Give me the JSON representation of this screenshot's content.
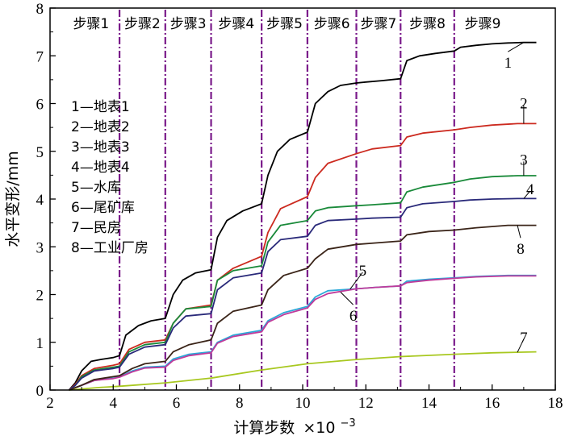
{
  "chart_data": {
    "type": "line",
    "xlabel": "计算步数",
    "xlabel_scale": "×10",
    "xlabel_exponent": "−3",
    "ylabel": "水平变形/mm",
    "xlim": [
      2,
      18
    ],
    "ylim": [
      0,
      8
    ],
    "x_ticks": [
      "2",
      "4",
      "6",
      "8",
      "10",
      "12",
      "14",
      "16",
      "18"
    ],
    "y_ticks": [
      "0",
      "1",
      "2",
      "3",
      "4",
      "5",
      "6",
      "7",
      "8"
    ],
    "grid": false,
    "step_boundaries": [
      4.2,
      5.65,
      7.1,
      8.7,
      10.15,
      11.7,
      13.1,
      14.8
    ],
    "step_labels": [
      "步骤1",
      "步骤2",
      "步骤3",
      "步骤4",
      "步骤5",
      "步骤6",
      "步骤7",
      "步骤8",
      "步骤9"
    ],
    "legend": [
      "1—地表1",
      "2—地表2",
      "3—地表3",
      "4—地表4",
      "5—水库",
      "6—尾矿库",
      "7—民房",
      "8—工业厂房"
    ],
    "legend_position": "left",
    "series": [
      {
        "name": "1",
        "color": "#000000",
        "x": [
          2.6,
          2.8,
          3.0,
          3.3,
          3.6,
          4.0,
          4.2,
          4.4,
          4.8,
          5.2,
          5.65,
          5.9,
          6.2,
          6.6,
          7.1,
          7.3,
          7.6,
          8.1,
          8.7,
          8.9,
          9.2,
          9.6,
          10.15,
          10.4,
          10.8,
          11.2,
          11.7,
          12.0,
          12.5,
          13.1,
          13.3,
          13.7,
          14.2,
          14.8,
          15.0,
          15.5,
          16.0,
          16.5,
          17.0,
          17.4
        ],
        "y": [
          0,
          0.15,
          0.4,
          0.6,
          0.64,
          0.68,
          0.72,
          1.15,
          1.35,
          1.45,
          1.5,
          2.0,
          2.3,
          2.45,
          2.52,
          3.2,
          3.55,
          3.75,
          3.9,
          4.5,
          5.0,
          5.25,
          5.4,
          6.0,
          6.25,
          6.38,
          6.43,
          6.45,
          6.48,
          6.52,
          6.9,
          7.0,
          7.05,
          7.1,
          7.18,
          7.22,
          7.25,
          7.27,
          7.28,
          7.28
        ]
      },
      {
        "name": "2",
        "color": "#cc2a1f",
        "x": [
          2.6,
          2.8,
          3.0,
          3.4,
          4.0,
          4.2,
          4.5,
          5.0,
          5.65,
          5.9,
          6.3,
          7.1,
          7.3,
          7.8,
          8.7,
          8.9,
          9.3,
          10.15,
          10.4,
          10.8,
          11.7,
          12.2,
          13.1,
          13.3,
          13.8,
          14.8,
          15.3,
          16.0,
          16.8,
          17.4
        ],
        "y": [
          0,
          0.12,
          0.3,
          0.45,
          0.52,
          0.55,
          0.85,
          1.0,
          1.05,
          1.4,
          1.7,
          1.78,
          2.3,
          2.55,
          2.8,
          3.3,
          3.8,
          4.05,
          4.45,
          4.75,
          4.95,
          5.05,
          5.12,
          5.3,
          5.38,
          5.45,
          5.5,
          5.55,
          5.58,
          5.58
        ]
      },
      {
        "name": "3",
        "color": "#1a8a3a",
        "x": [
          2.6,
          2.8,
          3.0,
          3.4,
          4.0,
          4.2,
          4.5,
          5.0,
          5.65,
          5.9,
          6.3,
          7.1,
          7.3,
          7.8,
          8.7,
          8.9,
          9.3,
          10.15,
          10.4,
          10.8,
          11.7,
          12.2,
          13.1,
          13.3,
          13.8,
          14.8,
          15.3,
          16.0,
          16.8,
          17.4
        ],
        "y": [
          0,
          0.1,
          0.28,
          0.42,
          0.48,
          0.5,
          0.8,
          0.95,
          1.0,
          1.4,
          1.7,
          1.75,
          2.3,
          2.5,
          2.6,
          3.1,
          3.45,
          3.55,
          3.75,
          3.82,
          3.86,
          3.88,
          3.92,
          4.15,
          4.25,
          4.35,
          4.42,
          4.47,
          4.49,
          4.49
        ]
      },
      {
        "name": "4",
        "color": "#2a2a7a",
        "x": [
          2.6,
          2.8,
          3.0,
          3.4,
          4.0,
          4.2,
          4.5,
          5.0,
          5.65,
          5.9,
          6.3,
          7.1,
          7.3,
          7.8,
          8.7,
          8.9,
          9.3,
          10.15,
          10.4,
          10.8,
          11.7,
          12.2,
          13.1,
          13.3,
          13.8,
          14.8,
          15.3,
          16.0,
          16.8,
          17.4
        ],
        "y": [
          0,
          0.1,
          0.25,
          0.4,
          0.45,
          0.48,
          0.75,
          0.9,
          0.95,
          1.3,
          1.55,
          1.6,
          2.1,
          2.35,
          2.45,
          2.9,
          3.15,
          3.22,
          3.45,
          3.55,
          3.58,
          3.6,
          3.62,
          3.82,
          3.9,
          3.95,
          3.98,
          4.0,
          4.01,
          4.01
        ]
      },
      {
        "name": "5",
        "color": "#2aa8d8",
        "x": [
          2.6,
          3.0,
          3.4,
          4.0,
          4.2,
          4.6,
          5.0,
          5.65,
          5.9,
          6.4,
          7.1,
          7.3,
          7.8,
          8.7,
          8.9,
          9.4,
          10.15,
          10.4,
          10.8,
          11.7,
          12.3,
          13.1,
          13.3,
          14.0,
          14.8,
          15.5,
          16.5,
          17.4
        ],
        "y": [
          0,
          0.1,
          0.2,
          0.25,
          0.28,
          0.4,
          0.48,
          0.5,
          0.65,
          0.75,
          0.8,
          1.0,
          1.15,
          1.25,
          1.45,
          1.62,
          1.75,
          1.95,
          2.08,
          2.12,
          2.15,
          2.18,
          2.28,
          2.32,
          2.35,
          2.38,
          2.4,
          2.4
        ]
      },
      {
        "name": "6",
        "color": "#c03a9a",
        "x": [
          2.6,
          3.0,
          3.4,
          4.0,
          4.2,
          4.6,
          5.0,
          5.65,
          5.9,
          6.4,
          7.1,
          7.3,
          7.8,
          8.7,
          8.9,
          9.4,
          10.15,
          10.4,
          10.8,
          11.7,
          12.3,
          13.1,
          13.3,
          14.0,
          14.8,
          15.5,
          16.5,
          17.4
        ],
        "y": [
          0,
          0.1,
          0.2,
          0.24,
          0.27,
          0.38,
          0.46,
          0.48,
          0.62,
          0.72,
          0.78,
          0.98,
          1.12,
          1.22,
          1.42,
          1.58,
          1.72,
          1.9,
          2.02,
          2.12,
          2.15,
          2.18,
          2.25,
          2.3,
          2.34,
          2.37,
          2.39,
          2.39
        ]
      },
      {
        "name": "7",
        "color": "#a8c820",
        "x": [
          2.6,
          3.5,
          4.2,
          5.65,
          7.1,
          8.7,
          10.15,
          11.7,
          13.1,
          14.8,
          16.0,
          17.4
        ],
        "y": [
          0,
          0.05,
          0.08,
          0.15,
          0.25,
          0.42,
          0.55,
          0.64,
          0.7,
          0.75,
          0.78,
          0.8
        ]
      },
      {
        "name": "8",
        "color": "#3a2418",
        "x": [
          2.6,
          3.0,
          3.4,
          4.0,
          4.2,
          4.6,
          5.0,
          5.65,
          5.9,
          6.4,
          7.1,
          7.3,
          7.8,
          8.7,
          8.9,
          9.4,
          10.15,
          10.4,
          10.8,
          11.7,
          12.3,
          13.1,
          13.3,
          14.0,
          14.8,
          15.5,
          16.5,
          17.4
        ],
        "y": [
          0,
          0.1,
          0.22,
          0.28,
          0.3,
          0.45,
          0.55,
          0.6,
          0.8,
          0.95,
          1.05,
          1.4,
          1.65,
          1.78,
          2.1,
          2.4,
          2.55,
          2.75,
          2.95,
          3.05,
          3.08,
          3.12,
          3.25,
          3.32,
          3.35,
          3.4,
          3.45,
          3.45
        ]
      }
    ],
    "curve_labels": [
      {
        "text": "1",
        "series": 0,
        "x": 17.0,
        "y": 7.28,
        "tx": 16.5,
        "ty": 6.85
      },
      {
        "text": "2",
        "series": 1,
        "x": 17.0,
        "y": 5.58,
        "tx": 17.0,
        "ty": 6.0
      },
      {
        "text": "3",
        "series": 2,
        "x": 17.0,
        "y": 4.49,
        "tx": 17.0,
        "ty": 4.82
      },
      {
        "text": "4",
        "series": 3,
        "x": 17.0,
        "y": 4.01,
        "tx": 17.2,
        "ty": 4.2
      },
      {
        "text": "5",
        "series": 4,
        "x": 11.5,
        "y": 2.11,
        "tx": 11.9,
        "ty": 2.5
      },
      {
        "text": "6",
        "series": 5,
        "x": 11.2,
        "y": 2.05,
        "tx": 11.6,
        "ty": 1.55
      },
      {
        "text": "7",
        "series": 6,
        "x": 16.8,
        "y": 0.79,
        "tx": 17.0,
        "ty": 1.1
      },
      {
        "text": "8",
        "series": 7,
        "x": 16.8,
        "y": 3.45,
        "tx": 16.9,
        "ty": 2.95
      }
    ]
  }
}
